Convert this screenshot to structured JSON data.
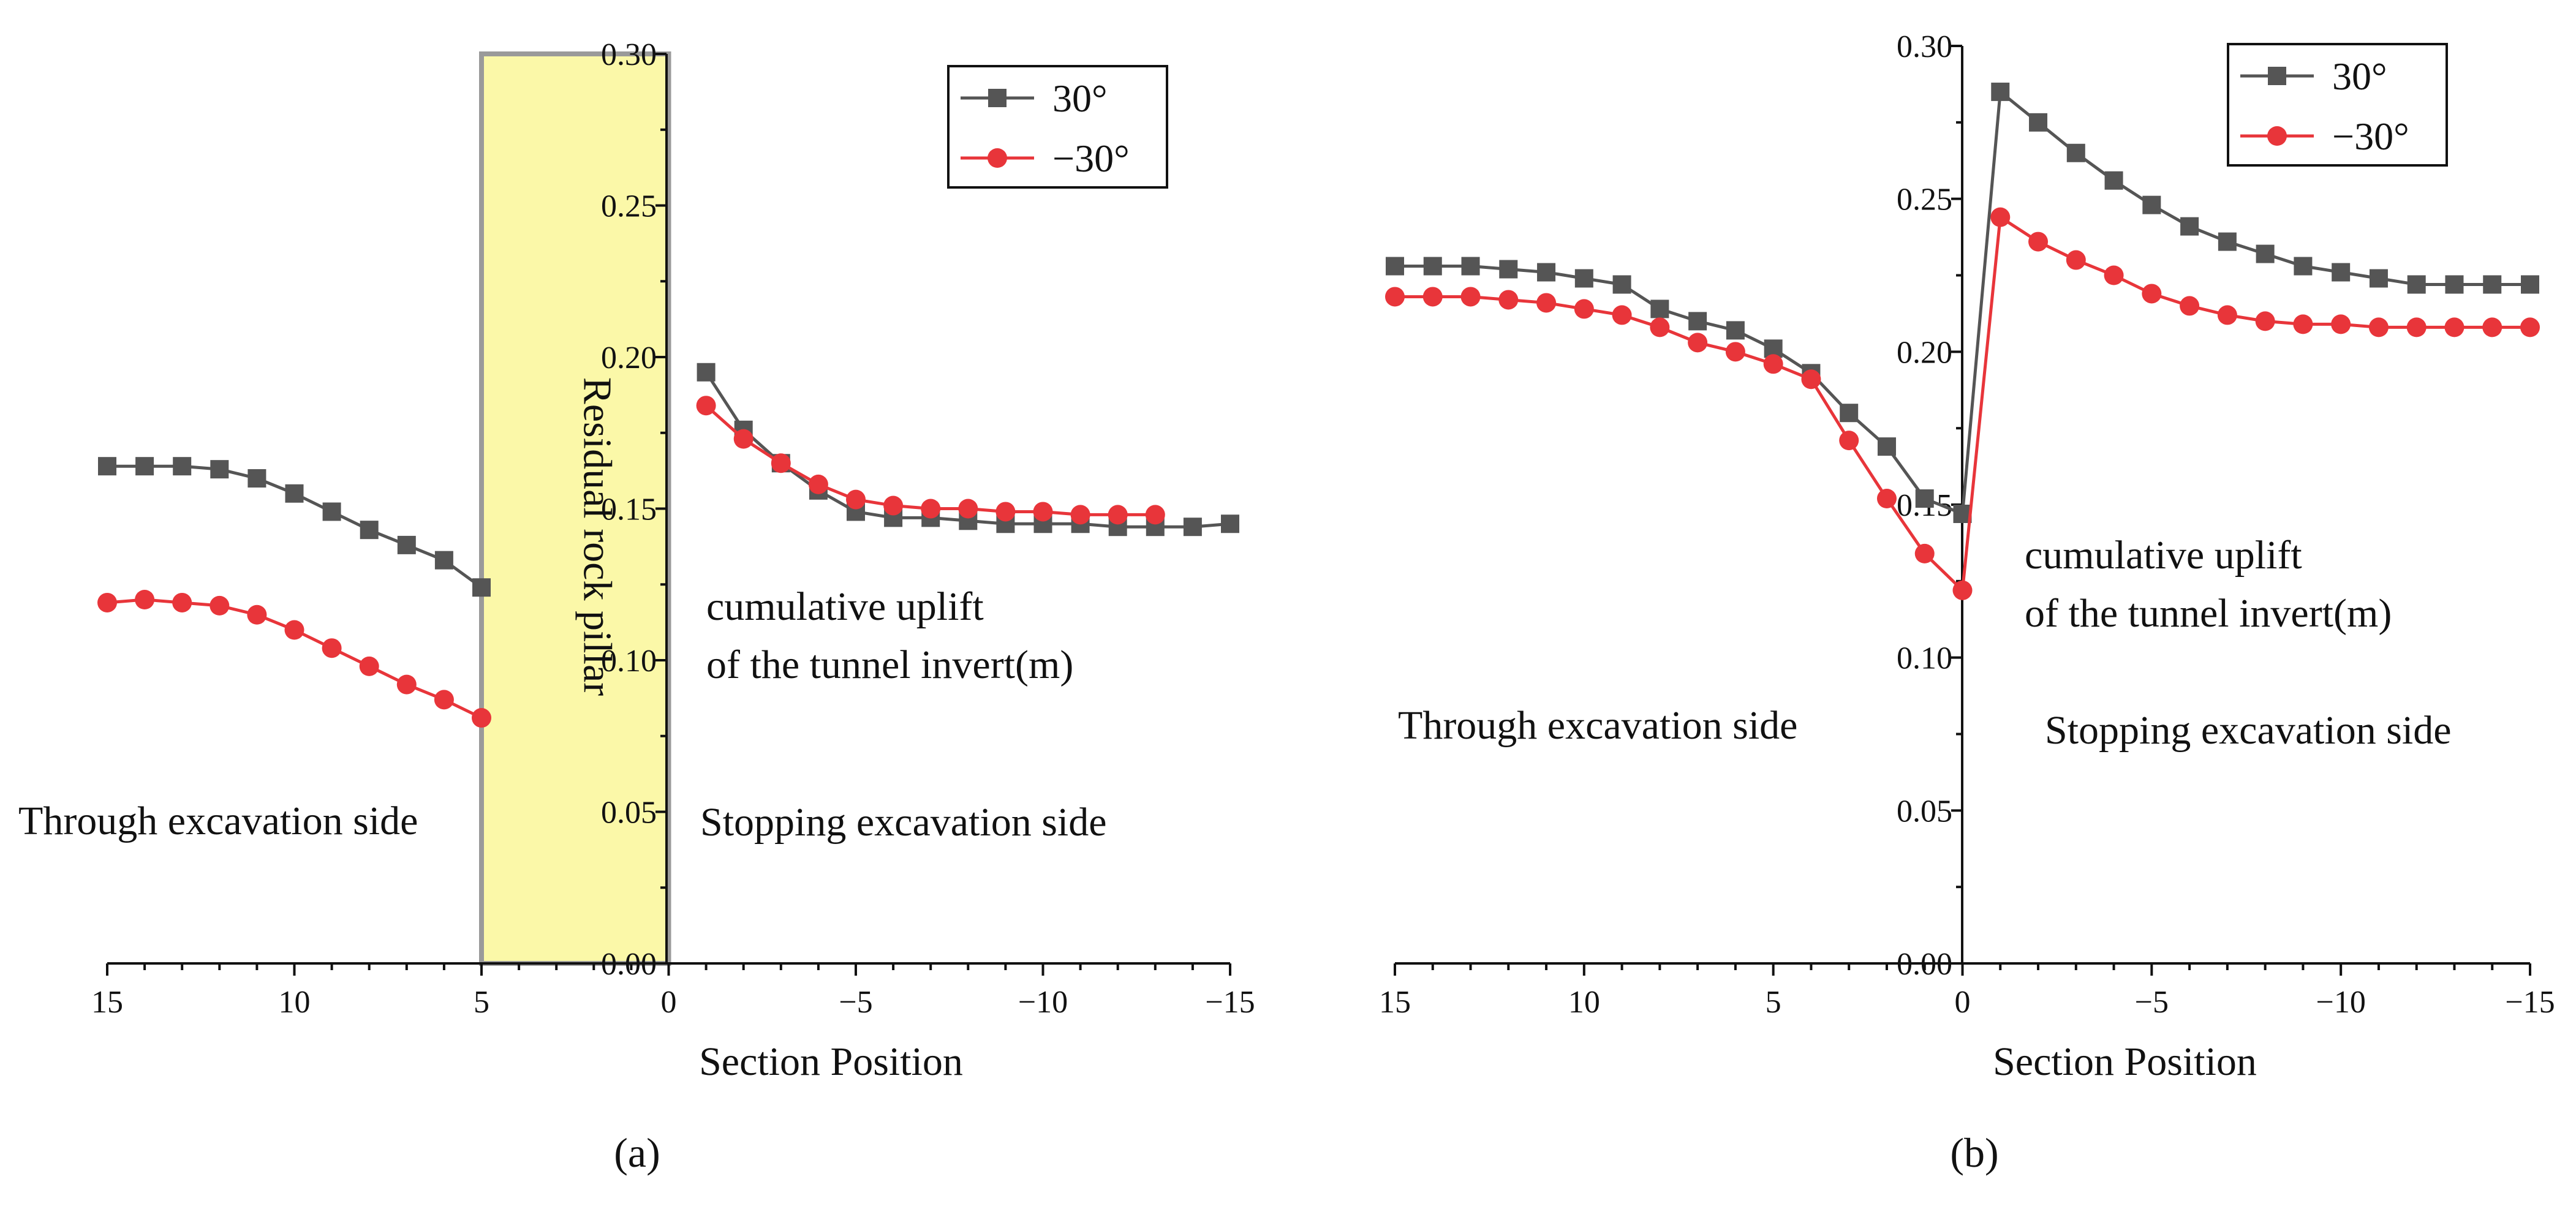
{
  "chart_data": [
    {
      "type": "line",
      "panel_label": "(a)",
      "xlabel": "Section Position",
      "ylabel": "cumulative uplift of the tunnel invert(m)",
      "ylabel_lines": [
        "cumulative uplift",
        "of the tunnel invert(m)"
      ],
      "xlim": [
        15,
        -15
      ],
      "ylim": [
        0.0,
        0.3
      ],
      "xticks": [
        "15",
        "10",
        "5",
        "0",
        "−15"
      ],
      "xtick_values": [
        15,
        10,
        5,
        0,
        -15
      ],
      "xtick_extra": {
        "value": -5,
        "label": "−5"
      },
      "xtick_extra2": {
        "value": -10,
        "label": "−10"
      },
      "yticks": [
        "0.00",
        "0.05",
        "0.10",
        "0.15",
        "0.20",
        "0.25",
        "0.30"
      ],
      "ytick_values": [
        0.0,
        0.05,
        0.1,
        0.15,
        0.2,
        0.25,
        0.3
      ],
      "annotations": {
        "left_side": "Through excavation side",
        "right_side": "Stopping excavation side",
        "pillar": "Residual rock pillar"
      },
      "pillar_range": [
        5,
        0
      ],
      "legend": {
        "position": "top-right"
      },
      "series": [
        {
          "name": "30°",
          "color": "#555555",
          "marker": "square",
          "segments": [
            {
              "x": [
                15,
                14,
                13,
                12,
                11,
                10,
                9,
                8,
                7,
                6,
                5
              ],
              "y": [
                0.164,
                0.164,
                0.164,
                0.163,
                0.16,
                0.155,
                0.149,
                0.143,
                0.138,
                0.133,
                0.124
              ]
            },
            {
              "x": [
                -1,
                -2,
                -3,
                -4,
                -5,
                -6,
                -7,
                -8,
                -9,
                -10,
                -11,
                -12,
                -13,
                -14,
                -15
              ],
              "y": [
                0.195,
                0.176,
                0.165,
                0.156,
                0.149,
                0.147,
                0.147,
                0.146,
                0.145,
                0.145,
                0.145,
                0.144,
                0.144,
                0.144,
                0.145
              ]
            }
          ]
        },
        {
          "name": "−30°",
          "color": "#e8353a",
          "marker": "circle",
          "segments": [
            {
              "x": [
                15,
                14,
                13,
                12,
                11,
                10,
                9,
                8,
                7,
                6,
                5
              ],
              "y": [
                0.119,
                0.12,
                0.119,
                0.118,
                0.115,
                0.11,
                0.104,
                0.098,
                0.092,
                0.087,
                0.081
              ]
            },
            {
              "x": [
                -1,
                -2,
                -3,
                -4,
                -5,
                -6,
                -7,
                -8,
                -9,
                -10,
                -11,
                -12,
                -13
              ],
              "y": [
                0.184,
                0.173,
                0.165,
                0.158,
                0.153,
                0.151,
                0.15,
                0.15,
                0.149,
                0.149,
                0.148,
                0.148,
                0.148
              ]
            }
          ]
        }
      ]
    },
    {
      "type": "line",
      "panel_label": "(b)",
      "xlabel": "Section Position",
      "ylabel": "cumulative uplift of the tunnel invert(m)",
      "ylabel_lines": [
        "cumulative uplift",
        "of the tunnel invert(m)"
      ],
      "xlim": [
        15,
        -15
      ],
      "ylim": [
        0.0,
        0.3
      ],
      "xticks": [
        "15",
        "10",
        "5",
        "0",
        "−5",
        "−10",
        "−15"
      ],
      "xtick_values": [
        15,
        10,
        5,
        0,
        -5,
        -10,
        -15
      ],
      "yticks": [
        "0.00",
        "0.05",
        "0.10",
        "0.15",
        "0.20",
        "0.25",
        "0.30"
      ],
      "ytick_values": [
        0.0,
        0.05,
        0.1,
        0.15,
        0.2,
        0.25,
        0.3
      ],
      "annotations": {
        "left_side": "Through excavation side",
        "right_side": "Stopping excavation side"
      },
      "legend": {
        "position": "top-right"
      },
      "series": [
        {
          "name": "30°",
          "color": "#555555",
          "marker": "square",
          "segments": [
            {
              "x": [
                15,
                14,
                13,
                12,
                11,
                10,
                9,
                8,
                7,
                6,
                5,
                4,
                3,
                2,
                1,
                0,
                -1,
                -2,
                -3,
                -4,
                -5,
                -6,
                -7,
                -8,
                -9,
                -10,
                -11,
                -12,
                -13,
                -14,
                -15
              ],
              "y": [
                0.228,
                0.228,
                0.228,
                0.227,
                0.226,
                0.224,
                0.222,
                0.214,
                0.21,
                0.207,
                0.201,
                0.193,
                0.18,
                0.169,
                0.152,
                0.147,
                0.285,
                0.275,
                0.265,
                0.256,
                0.248,
                0.241,
                0.236,
                0.232,
                0.228,
                0.226,
                0.224,
                0.222,
                0.222,
                0.222,
                0.222
              ]
            }
          ]
        },
        {
          "name": "−30°",
          "color": "#e8353a",
          "marker": "circle",
          "segments": [
            {
              "x": [
                15,
                14,
                13,
                12,
                11,
                10,
                9,
                8,
                7,
                6,
                5,
                4,
                3,
                2,
                1,
                0,
                -1,
                -2,
                -3,
                -4,
                -5,
                -6,
                -7,
                -8,
                -9,
                -10,
                -11,
                -12,
                -13,
                -14,
                -15
              ],
              "y": [
                0.218,
                0.218,
                0.218,
                0.217,
                0.216,
                0.214,
                0.212,
                0.208,
                0.203,
                0.2,
                0.196,
                0.191,
                0.171,
                0.152,
                0.134,
                0.122,
                0.244,
                0.236,
                0.23,
                0.225,
                0.219,
                0.215,
                0.212,
                0.21,
                0.209,
                0.209,
                0.208,
                0.208,
                0.208,
                0.208,
                0.208
              ]
            }
          ]
        }
      ]
    }
  ]
}
